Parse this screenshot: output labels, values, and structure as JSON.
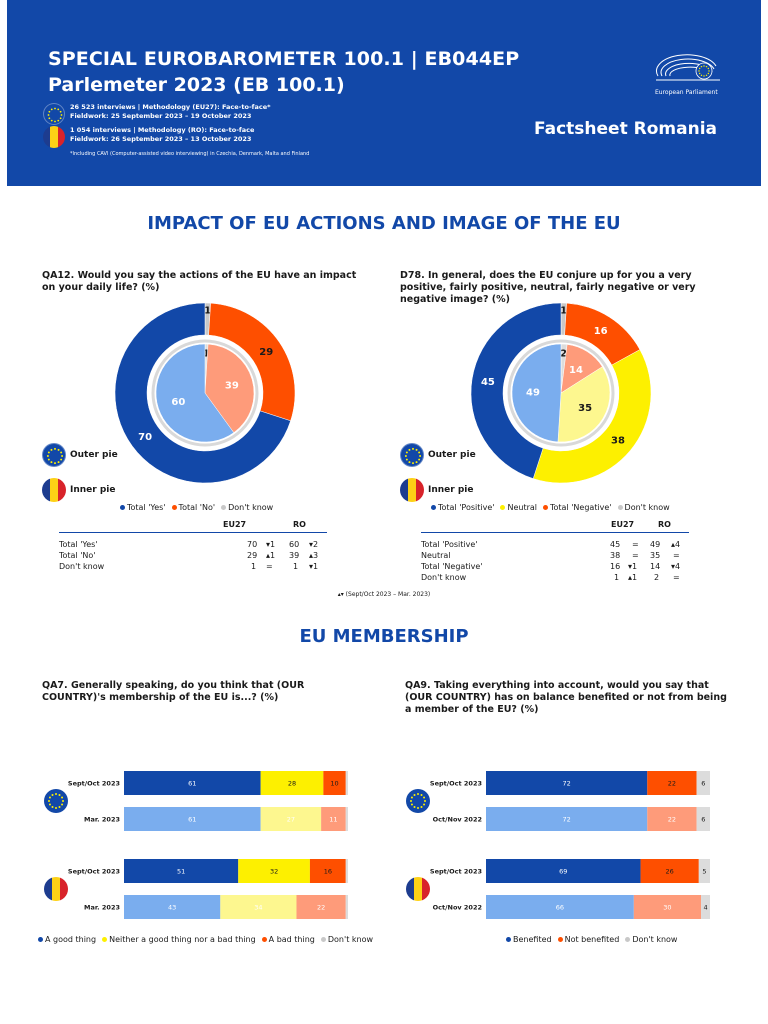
{
  "header": {
    "title_line1": "SPECIAL EUROBAROMETER 100.1 | EB044EP",
    "title_line2": "Parlemeter 2023 (EB 100.1)",
    "eu_meta_line1": "26 523 interviews | Methodology (EU27): Face-to-face*",
    "eu_meta_line2": "Fieldwork: 25 September 2023 – 19 October 2023",
    "ro_meta_line1": "1 054 interviews | Methodology (RO): Face-to-face",
    "ro_meta_line2": "Fieldwork: 26 September 2023 – 13 October 2023",
    "footnote": "*Including CAVI (Computer-assisted video interviewing) in Czechia, Denmark, Malta and Finland",
    "factsheet": "Factsheet Romania",
    "ep_name": "European Parliament"
  },
  "sections": {
    "impact_title": "IMPACT OF EU ACTIONS AND IMAGE OF THE EU",
    "membership_title": "EU MEMBERSHIP"
  },
  "pie_legend": {
    "outer": "Outer pie",
    "inner": "Inner pie"
  },
  "trend_note": "▴▾ (Sept/Oct 2023 – Mar. 2023)",
  "colors": {
    "dark_blue": "#1248a8",
    "light_blue": "#7aadee",
    "orange": "#fe4f00",
    "light_orange": "#fe9b7a",
    "yellow": "#fdf000",
    "light_yellow": "#fdf78f",
    "grey": "#c8c8c8",
    "light_grey": "#dcdcdc"
  },
  "qa12": {
    "question": "QA12. Would you say the actions of the EU have an impact on your daily life? (%)",
    "legend": [
      "Total 'Yes'",
      "Total 'No'",
      "Don't know"
    ],
    "table": {
      "headers": [
        "EU27",
        "RO"
      ],
      "rows": [
        {
          "label": "Total 'Yes'",
          "eu": "70",
          "eu_trend": "▾1",
          "ro": "60",
          "ro_trend": "▾2"
        },
        {
          "label": "Total 'No'",
          "eu": "29",
          "eu_trend": "▴1",
          "ro": "39",
          "ro_trend": "▴3"
        },
        {
          "label": "Don't know",
          "eu": "1",
          "eu_trend": "=",
          "ro": "1",
          "ro_trend": "▾1"
        }
      ]
    }
  },
  "d78": {
    "question": "D78. In general, does the EU conjure up for you a very positive, fairly positive, neutral, fairly negative or very negative image? (%)",
    "legend": [
      "Total 'Positive'",
      "Neutral",
      "Total 'Negative'",
      "Don't know"
    ],
    "table": {
      "headers": [
        "EU27",
        "RO"
      ],
      "rows": [
        {
          "label": "Total 'Positive'",
          "eu": "45",
          "eu_trend": "=",
          "ro": "49",
          "ro_trend": "▴4"
        },
        {
          "label": "Neutral",
          "eu": "38",
          "eu_trend": "=",
          "ro": "35",
          "ro_trend": "="
        },
        {
          "label": "Total 'Negative'",
          "eu": "16",
          "eu_trend": "▾1",
          "ro": "14",
          "ro_trend": "▾4"
        },
        {
          "label": "Don't know",
          "eu": "1",
          "eu_trend": "▴1",
          "ro": "2",
          "ro_trend": "="
        }
      ]
    }
  },
  "qa7": {
    "question": "QA7. Generally speaking, do you think that (OUR COUNTRY)'s membership of the EU is...? (%)",
    "legend": [
      "A good thing",
      "Neither a good thing nor a bad thing",
      "A bad thing",
      "Don't know"
    ]
  },
  "qa9": {
    "question": "QA9. Taking everything into account, would you say that (OUR COUNTRY) has on balance benefited or not from being a member of the EU? (%)",
    "legend": [
      "Benefited",
      "Not benefited",
      "Don't know"
    ]
  },
  "chart_data": [
    {
      "type": "pie",
      "id": "qa12",
      "title": "QA12. Would you say the actions of the EU have an impact on your daily life? (%)",
      "categories": [
        "Total 'Yes'",
        "Total 'No'",
        "Don't know"
      ],
      "series": [
        {
          "name": "Outer pie",
          "values": [
            70,
            29,
            1
          ]
        },
        {
          "name": "Inner pie",
          "values": [
            60,
            39,
            1
          ]
        }
      ]
    },
    {
      "type": "pie",
      "id": "d78",
      "title": "D78. In general, does the EU conjure up for you a very positive, fairly positive, neutral, fairly negative or very negative image? (%)",
      "categories": [
        "Total 'Positive'",
        "Neutral",
        "Total 'Negative'",
        "Don't know"
      ],
      "series": [
        {
          "name": "Outer pie",
          "values": [
            45,
            38,
            16,
            1
          ]
        },
        {
          "name": "Inner pie",
          "values": [
            49,
            35,
            14,
            2
          ]
        }
      ]
    },
    {
      "type": "bar",
      "orientation": "horizontal",
      "stacked": true,
      "id": "qa7",
      "title": "QA7. Generally speaking, do you think that (OUR COUNTRY)'s membership of the EU is...? (%)",
      "categories": [
        "A good thing",
        "Neither a good thing nor a bad thing",
        "A bad thing",
        "Don't know"
      ],
      "groups": [
        {
          "flag": "eu",
          "bars": [
            {
              "label": "Sept/Oct 2023",
              "values": [
                61,
                28,
                10,
                1
              ],
              "current": true
            },
            {
              "label": "Mar. 2023",
              "values": [
                61,
                27,
                11,
                1
              ],
              "current": false
            }
          ]
        },
        {
          "flag": "ro",
          "bars": [
            {
              "label": "Sept/Oct 2023",
              "values": [
                51,
                32,
                16,
                1
              ],
              "current": true
            },
            {
              "label": "Mar. 2023",
              "values": [
                43,
                34,
                22,
                1
              ],
              "current": false
            }
          ]
        }
      ]
    },
    {
      "type": "bar",
      "orientation": "horizontal",
      "stacked": true,
      "id": "qa9",
      "title": "QA9. Taking everything into account, would you say that (OUR COUNTRY) has on balance benefited or not from being a member of the EU? (%)",
      "categories": [
        "Benefited",
        "Not benefited",
        "Don't know"
      ],
      "groups": [
        {
          "flag": "eu",
          "bars": [
            {
              "label": "Sept/Oct 2023",
              "values": [
                72,
                22,
                6
              ],
              "current": true
            },
            {
              "label": "Oct/Nov 2022",
              "values": [
                72,
                22,
                6
              ],
              "current": false
            }
          ]
        },
        {
          "flag": "ro",
          "bars": [
            {
              "label": "Sept/Oct 2023",
              "values": [
                69,
                26,
                5
              ],
              "current": true
            },
            {
              "label": "Oct/Nov 2022",
              "values": [
                66,
                30,
                4
              ],
              "current": false
            }
          ]
        }
      ]
    }
  ]
}
